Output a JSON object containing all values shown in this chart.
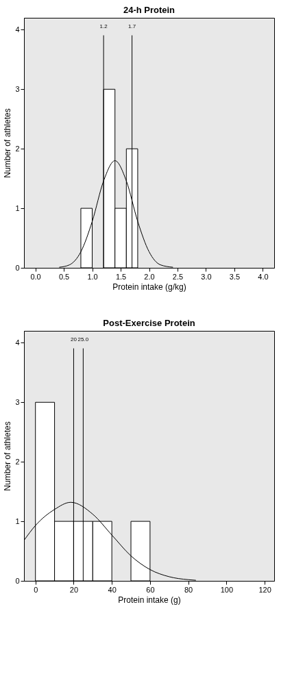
{
  "chart_data": [
    {
      "type": "histogram",
      "title": "24-h Protein",
      "xlabel": "Protein intake (g/kg)",
      "ylabel": "Number of athletes",
      "color": "#ffffff",
      "bins": [
        0.8,
        1.0,
        1.2,
        1.4,
        1.6,
        1.8
      ],
      "values": [
        1,
        0,
        3,
        1,
        2
      ],
      "series": [
        {
          "type": "line",
          "color": "#000000",
          "x": [
            0.42,
            0.6,
            0.8,
            1.0,
            1.2,
            1.4,
            1.6,
            1.8,
            2.0,
            2.2,
            2.42
          ],
          "values": [
            0.01,
            0.05,
            0.27,
            0.78,
            1.46,
            1.8,
            1.46,
            0.78,
            0.27,
            0.05,
            0.01
          ]
        }
      ],
      "ref_lines": [
        {
          "axis": "x",
          "value": 1.2,
          "label": "1.2"
        },
        {
          "axis": "x",
          "value": 1.7,
          "label": "1.7"
        }
      ],
      "xlim": [
        -0.2,
        4.2
      ],
      "xticks": [
        {
          "value": 0,
          "label": "0.0"
        },
        0.5,
        {
          "value": 1,
          "label": "1.0"
        },
        1.5,
        {
          "value": 2,
          "label": "2.0"
        },
        2.5,
        {
          "value": 3,
          "label": "3.0"
        },
        3.5,
        {
          "value": 4,
          "label": "4.0"
        }
      ],
      "ylim": [
        0,
        4.2
      ],
      "yticks": [
        0,
        1,
        2,
        3,
        4
      ],
      "grid": false
    },
    {
      "type": "histogram",
      "title": "Post-Exercise Protein",
      "xlabel": "Protein intake (g)",
      "ylabel": "Number of athletes",
      "color": "#ffffff",
      "bins": [
        0,
        10,
        20,
        30,
        40,
        50,
        60
      ],
      "values": [
        3,
        1,
        1,
        1,
        0,
        1
      ],
      "series": [
        {
          "type": "line",
          "color": "#000000",
          "x": [
            -6,
            0,
            10,
            18.5,
            30,
            40,
            50,
            60,
            70,
            80,
            84
          ],
          "values": [
            0.68,
            0.93,
            1.2,
            1.32,
            1.12,
            0.77,
            0.42,
            0.19,
            0.07,
            0.02,
            0.01
          ]
        }
      ],
      "ref_lines": [
        {
          "axis": "x",
          "value": 20,
          "label": "20"
        },
        {
          "axis": "x",
          "value": 25,
          "label": "25.0"
        }
      ],
      "xlim": [
        -6,
        125
      ],
      "xticks": [
        0,
        20,
        40,
        60,
        80,
        100,
        120
      ],
      "ylim": [
        0,
        4.2
      ],
      "yticks": [
        0,
        1,
        2,
        3,
        4
      ],
      "grid": false
    }
  ]
}
